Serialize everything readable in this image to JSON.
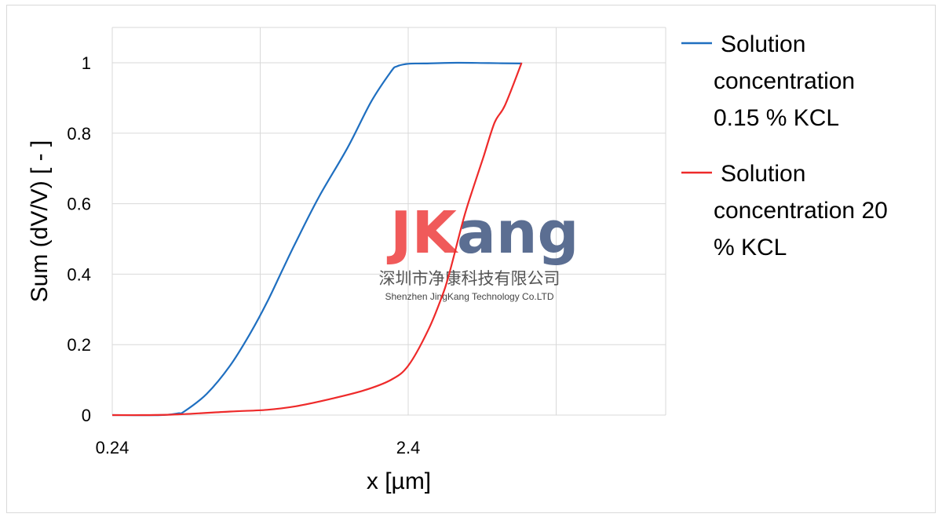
{
  "chart_data": {
    "type": "line",
    "xlabel": "x [µm]",
    "ylabel": "Sum (dV/V) [ - ]",
    "x_ticks": [
      "0.24",
      "2.4"
    ],
    "y_ticks": [
      "0",
      "0.2",
      "0.4",
      "0.6",
      "0.8",
      "1"
    ],
    "ylim": [
      0,
      1.1
    ],
    "grid": true,
    "legend_position": "right",
    "series": [
      {
        "name": "Solution concentration 0.15 % KCL",
        "color": "#1f6fc0",
        "x": [
          0.24,
          0.35,
          0.4,
          0.42,
          0.5,
          0.6,
          0.7,
          0.8,
          0.9,
          1.0,
          1.2,
          1.5,
          1.8,
          2.1,
          2.2,
          2.4,
          2.7,
          3.5,
          4.5,
          5.8
        ],
        "y": [
          0,
          0,
          0.005,
          0.01,
          0.06,
          0.14,
          0.23,
          0.32,
          0.41,
          0.49,
          0.62,
          0.76,
          0.89,
          0.975,
          0.99,
          0.997,
          0.998,
          1.0,
          0.999,
          0.998
        ]
      },
      {
        "name": "Solution concentration 20 % KCL",
        "color": "#ee2a2a",
        "x": [
          0.24,
          0.3,
          0.4,
          0.6,
          0.8,
          1.0,
          1.3,
          1.7,
          2.1,
          2.4,
          2.8,
          3.1,
          3.3,
          3.7,
          4.0,
          4.3,
          4.7,
          5.1,
          5.8
        ],
        "y": [
          0,
          0,
          0.002,
          0.01,
          0.015,
          0.025,
          0.045,
          0.07,
          0.1,
          0.14,
          0.24,
          0.33,
          0.4,
          0.56,
          0.65,
          0.73,
          0.83,
          0.88,
          1.0
        ]
      }
    ]
  },
  "legend": [
    {
      "lines": [
        "Solution",
        "concentration",
        "0.15 % KCL"
      ],
      "color": "#1f6fc0"
    },
    {
      "lines": [
        "Solution",
        "concentration 20",
        "% KCL"
      ],
      "color": "#ee2a2a"
    }
  ],
  "watermark": {
    "logo_j": "J",
    "logo_k": "K",
    "logo_rest": "ang",
    "company_cn": "深圳市净康科技有限公司",
    "company_en": "Shenzhen JingKang Technology Co.LTD",
    "color_red": "#f05a5a",
    "color_blue": "#5b6e92"
  }
}
